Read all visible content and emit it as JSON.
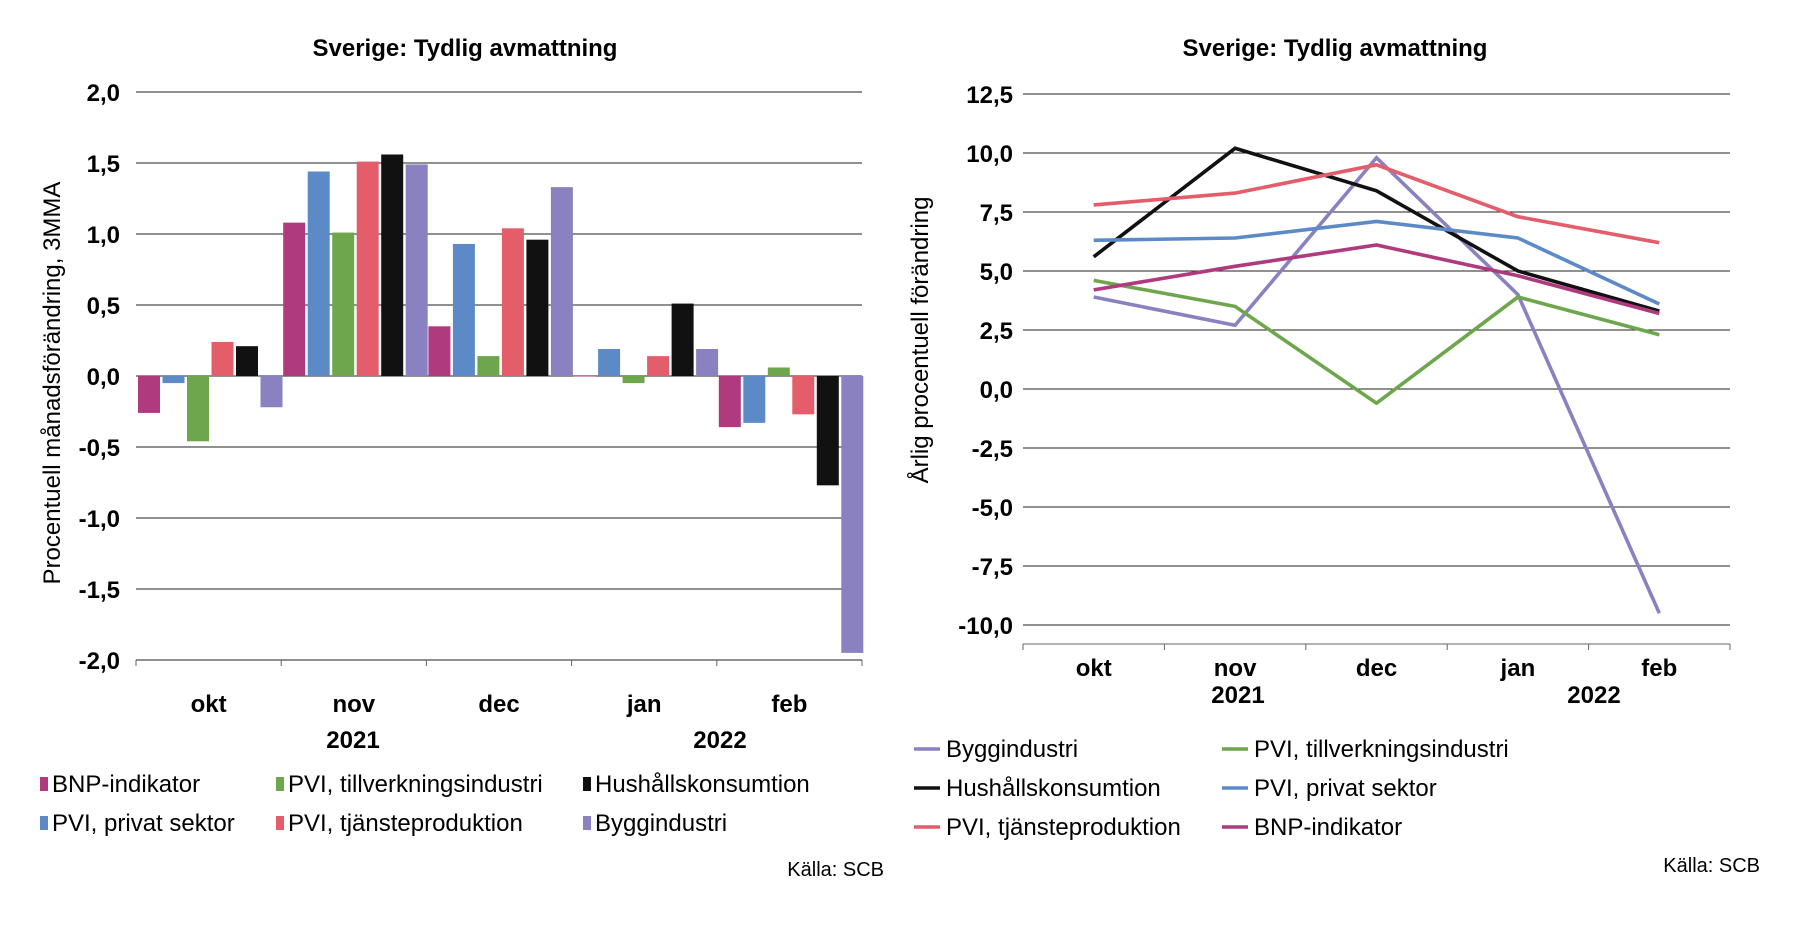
{
  "colors": {
    "bnp": "#b03a7e",
    "pvi_tillv": "#6ea64e",
    "hush": "#111111",
    "pvi_priv": "#5b8ac6",
    "pvi_tjanst": "#e35d6a",
    "bygg": "#8a82c0",
    "grid": "#222222"
  },
  "chart_data": [
    {
      "type": "bar",
      "title": "Sverige: Tydlig avmattning",
      "ylabel": "Procentuell månadsförändring, 3MMA",
      "xlabel": "",
      "ylim": [
        -2.0,
        2.0
      ],
      "yticks": [
        "2,0",
        "1,5",
        "1,0",
        "0,5",
        "0,0",
        "-0,5",
        "-1,0",
        "-1,5",
        "-2,0"
      ],
      "categories": [
        "okt",
        "nov",
        "dec",
        "jan",
        "feb"
      ],
      "year_labels": [
        "2021",
        "2022"
      ],
      "grid": true,
      "legend_position": "bottom",
      "source": "Källa: SCB",
      "series": [
        {
          "name": "BNP-indikator",
          "color_key": "bnp",
          "values": [
            -0.26,
            1.08,
            0.35,
            0.0,
            -0.36
          ]
        },
        {
          "name": "PVI, privat sektor",
          "color_key": "pvi_priv",
          "values": [
            -0.05,
            1.44,
            0.93,
            0.19,
            -0.33
          ]
        },
        {
          "name": "PVI, tillverkningsindustri",
          "color_key": "pvi_tillv",
          "values": [
            -0.46,
            1.01,
            0.14,
            -0.05,
            0.06
          ]
        },
        {
          "name": "PVI, tjänsteproduktion",
          "color_key": "pvi_tjanst",
          "values": [
            0.24,
            1.51,
            1.04,
            0.14,
            -0.27
          ]
        },
        {
          "name": "Hushållskonsumtion",
          "color_key": "hush",
          "values": [
            0.21,
            1.56,
            0.96,
            0.51,
            -0.77
          ]
        },
        {
          "name": "Byggindustri",
          "color_key": "bygg",
          "values": [
            -0.22,
            1.49,
            1.33,
            0.19,
            -1.95
          ]
        }
      ],
      "legend_order": [
        "BNP-indikator",
        "PVI, tillverkningsindustri",
        "Hushållskonsumtion",
        "PVI, privat sektor",
        "PVI, tjänsteproduktion",
        "Byggindustri"
      ]
    },
    {
      "type": "line",
      "title": "Sverige: Tydlig avmattning",
      "ylabel": "Årlig procentuell förändring",
      "xlabel": "",
      "ylim": [
        -10.0,
        12.5
      ],
      "yticks": [
        "12,5",
        "10,0",
        "7,5",
        "5,0",
        "2,5",
        "0,0",
        "-2,5",
        "-5,0",
        "-7,5",
        "-10,0"
      ],
      "categories": [
        "okt",
        "nov",
        "dec",
        "jan",
        "feb"
      ],
      "year_labels": [
        "2021",
        "2022"
      ],
      "grid": true,
      "legend_position": "bottom",
      "source": "Källa: SCB",
      "series": [
        {
          "name": "Byggindustri",
          "color_key": "bygg",
          "values": [
            3.9,
            2.7,
            9.8,
            4.0,
            -9.5
          ]
        },
        {
          "name": "PVI, tillverkningsindustri",
          "color_key": "pvi_tillv",
          "values": [
            4.6,
            3.5,
            -0.6,
            3.9,
            2.3
          ]
        },
        {
          "name": "Hushållskonsumtion",
          "color_key": "hush",
          "values": [
            5.6,
            10.2,
            8.4,
            5.0,
            3.3
          ]
        },
        {
          "name": "PVI, privat sektor",
          "color_key": "pvi_priv",
          "values": [
            6.3,
            6.4,
            7.1,
            6.4,
            3.6
          ]
        },
        {
          "name": "PVI, tjänsteproduktion",
          "color_key": "pvi_tjanst",
          "values": [
            7.8,
            8.3,
            9.5,
            7.3,
            6.2
          ]
        },
        {
          "name": "BNP-indikator",
          "color_key": "bnp",
          "values": [
            4.2,
            5.2,
            6.1,
            4.8,
            3.2
          ]
        }
      ],
      "legend_order": [
        "Byggindustri",
        "PVI, tillverkningsindustri",
        "Hushållskonsumtion",
        "PVI, privat sektor",
        "PVI, tjänsteproduktion",
        "BNP-indikator"
      ]
    }
  ]
}
